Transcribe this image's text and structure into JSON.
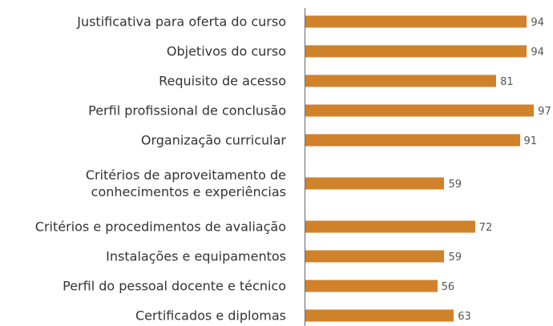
{
  "chart_data": {
    "type": "bar",
    "orientation": "horizontal",
    "categories": [
      "Justificativa para oferta do curso",
      "Objetivos do curso",
      "Requisito de acesso",
      "Perfil profissional de conclusão",
      "Organização curricular",
      "Critérios de aproveitamento de\nconhecimentos e experiências",
      "Critérios e procedimentos de avaliação",
      "Instalações e equipamentos",
      "Perfil do pessoal docente e técnico",
      "Certificados e diplomas"
    ],
    "values": [
      94,
      94,
      81,
      97,
      91,
      59,
      72,
      59,
      56,
      63
    ],
    "color": "#d0822a",
    "xlim": [
      0,
      100
    ]
  }
}
